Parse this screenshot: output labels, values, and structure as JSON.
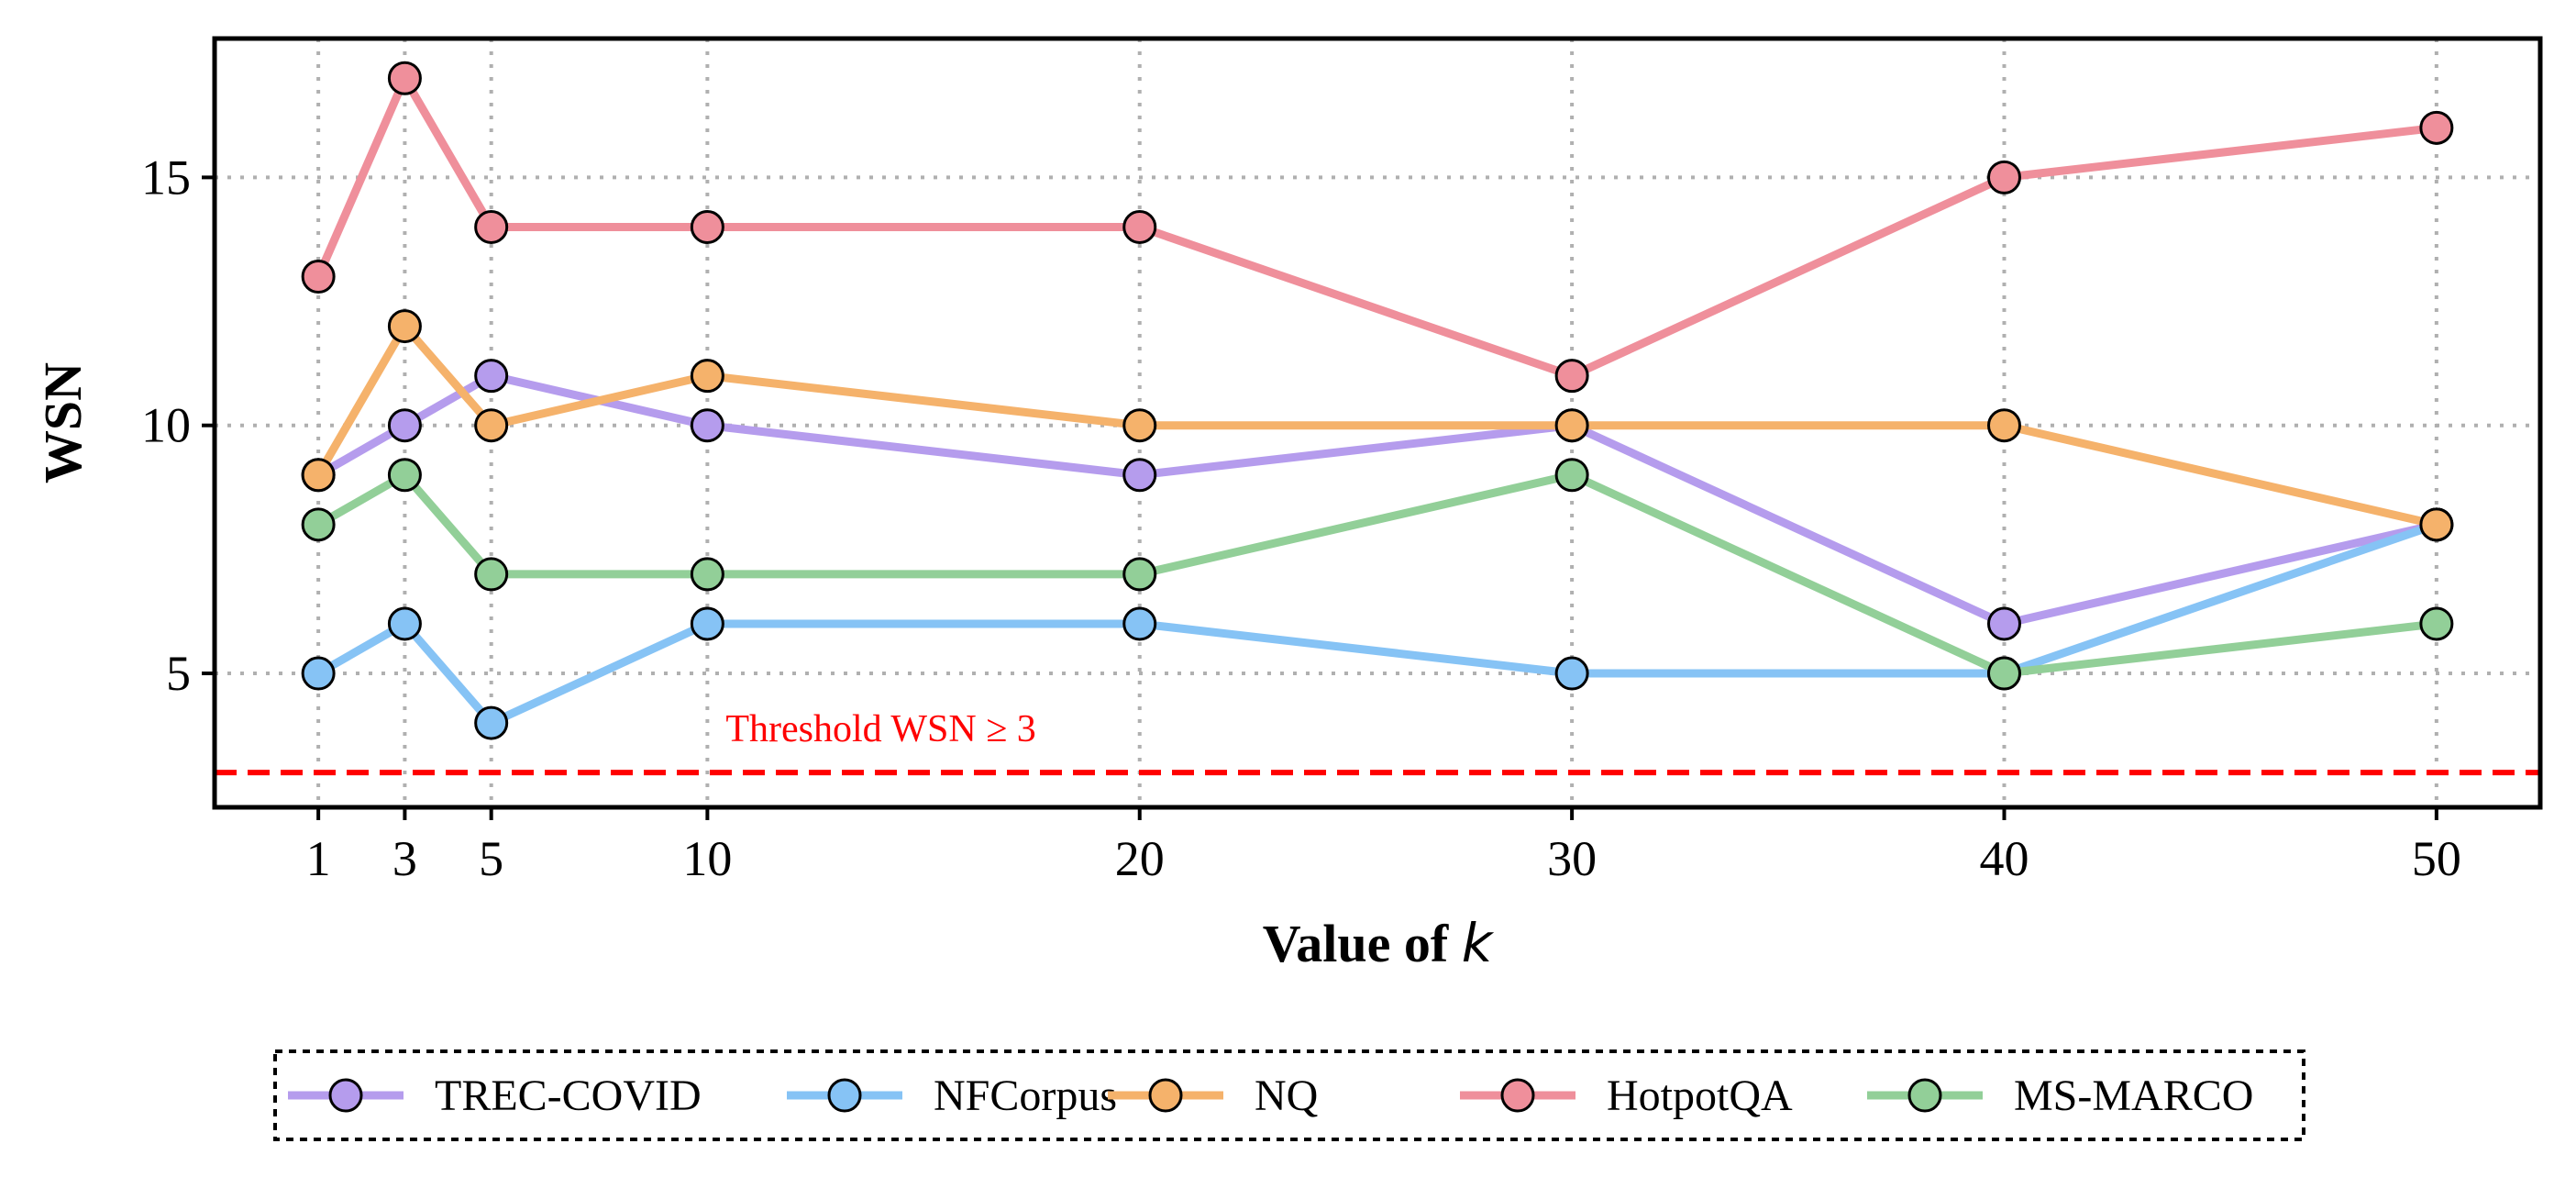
{
  "chart_data": {
    "type": "line",
    "x": [
      1,
      3,
      5,
      10,
      20,
      30,
      40,
      50
    ],
    "x_tick_labels": [
      "1",
      "3",
      "5",
      "10",
      "20",
      "30",
      "40",
      "50"
    ],
    "y_ticks": [
      5,
      10,
      15
    ],
    "y_tick_labels": [
      "5",
      "10",
      "15"
    ],
    "xlim": [
      -1.4,
      52.4
    ],
    "ylim": [
      2.3,
      17.8
    ],
    "xlabel_prefix": "Value of ",
    "xlabel_var": "k",
    "ylabel": "WSN",
    "grid": true,
    "legend_position": "bottom-center",
    "series": [
      {
        "name": "TREC-COVID",
        "color": "#b59ced",
        "values": [
          9,
          10,
          11,
          10,
          9,
          10,
          6,
          8
        ]
      },
      {
        "name": "NFCorpus",
        "color": "#86c3f5",
        "values": [
          5,
          6,
          4,
          6,
          6,
          5,
          5,
          8
        ]
      },
      {
        "name": "NQ",
        "color": "#f5b26b",
        "values": [
          9,
          12,
          10,
          11,
          10,
          10,
          10,
          8
        ]
      },
      {
        "name": "HotpotQA",
        "color": "#ef8f9b",
        "values": [
          13,
          17,
          14,
          14,
          14,
          11,
          15,
          16
        ]
      },
      {
        "name": "MS-MARCO",
        "color": "#92cf98",
        "values": [
          8,
          9,
          7,
          7,
          7,
          9,
          5,
          6
        ]
      }
    ],
    "threshold": {
      "value": 3,
      "label": "Threshold WSN ≥ 3",
      "label_x": 10,
      "color": "#ff0000"
    }
  }
}
